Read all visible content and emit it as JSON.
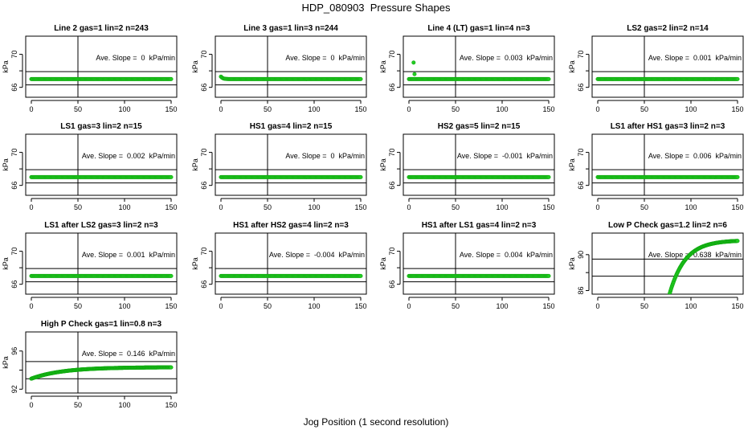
{
  "title": "HDP_080903  Pressure Shapes",
  "xlabel": "Jog Position (1 second resolution)",
  "chart_data": [
    {
      "type": "scatter",
      "title": "Line 2 gas=1 lin=2 n=243",
      "ylabel": "kPa",
      "xlim": [
        0,
        150
      ],
      "xticks": [
        0,
        50,
        100,
        150
      ],
      "ylim": [
        64.8,
        72.2
      ],
      "yticks": [
        66,
        70
      ],
      "hlines": [
        66.3,
        67.9
      ],
      "vline": 50,
      "annotation": "Ave. Slope =  0  kPa/min",
      "shape": "flat",
      "y_level": 67.0,
      "y_first": 67.0
    },
    {
      "type": "scatter",
      "title": "Line 3 gas=1 lin=3 n=244",
      "ylabel": "kPa",
      "xlim": [
        0,
        150
      ],
      "xticks": [
        0,
        50,
        100,
        150
      ],
      "ylim": [
        64.8,
        72.2
      ],
      "yticks": [
        66,
        70
      ],
      "hlines": [
        66.3,
        67.9
      ],
      "vline": 50,
      "annotation": "Ave. Slope =  0  kPa/min",
      "shape": "flat",
      "y_level": 67.0,
      "y_first": 67.3
    },
    {
      "type": "scatter",
      "title": "Line 4 (LT) gas=1 lin=4 n=3",
      "ylabel": "kPa",
      "xlim": [
        0,
        150
      ],
      "xticks": [
        0,
        50,
        100,
        150
      ],
      "ylim": [
        64.8,
        72.2
      ],
      "yticks": [
        66,
        70
      ],
      "hlines": [
        66.3,
        67.9
      ],
      "vline": 50,
      "annotation": "Ave. Slope =  0.003  kPa/min",
      "shape": "flat",
      "y_level": 67.0,
      "y_first": 67.0,
      "outliers": [
        [
          5,
          69.0
        ],
        [
          6,
          67.6
        ]
      ]
    },
    {
      "type": "scatter",
      "title": "LS2 gas=2 lin=2 n=14",
      "ylabel": "kPa",
      "xlim": [
        0,
        150
      ],
      "xticks": [
        0,
        50,
        100,
        150
      ],
      "ylim": [
        64.8,
        72.2
      ],
      "yticks": [
        66,
        70
      ],
      "hlines": [
        66.3,
        67.9
      ],
      "vline": 50,
      "annotation": "Ave. Slope =  0.001  kPa/min",
      "shape": "flat",
      "y_level": 67.0,
      "y_first": 67.0
    },
    {
      "type": "scatter",
      "title": "LS1 gas=3 lin=2 n=15",
      "ylabel": "kPa",
      "xlim": [
        0,
        150
      ],
      "xticks": [
        0,
        50,
        100,
        150
      ],
      "ylim": [
        64.8,
        72.2
      ],
      "yticks": [
        66,
        70
      ],
      "hlines": [
        66.3,
        67.9
      ],
      "vline": 50,
      "annotation": "Ave. Slope =  0.002  kPa/min",
      "shape": "flat",
      "y_level": 67.0,
      "y_first": 67.0
    },
    {
      "type": "scatter",
      "title": "HS1 gas=4 lin=2 n=15",
      "ylabel": "kPa",
      "xlim": [
        0,
        150
      ],
      "xticks": [
        0,
        50,
        100,
        150
      ],
      "ylim": [
        64.8,
        72.2
      ],
      "yticks": [
        66,
        70
      ],
      "hlines": [
        66.3,
        67.9
      ],
      "vline": 50,
      "annotation": "Ave. Slope =  0  kPa/min",
      "shape": "flat",
      "y_level": 67.0,
      "y_first": 67.0
    },
    {
      "type": "scatter",
      "title": "HS2 gas=5 lin=2 n=15",
      "ylabel": "kPa",
      "xlim": [
        0,
        150
      ],
      "xticks": [
        0,
        50,
        100,
        150
      ],
      "ylim": [
        64.8,
        72.2
      ],
      "yticks": [
        66,
        70
      ],
      "hlines": [
        66.3,
        67.9
      ],
      "vline": 50,
      "annotation": "Ave. Slope =  -0.001  kPa/min",
      "shape": "flat",
      "y_level": 67.0,
      "y_first": 67.0
    },
    {
      "type": "scatter",
      "title": "LS1 after HS1 gas=3 lin=2 n=3",
      "ylabel": "kPa",
      "xlim": [
        0,
        150
      ],
      "xticks": [
        0,
        50,
        100,
        150
      ],
      "ylim": [
        64.8,
        72.2
      ],
      "yticks": [
        66,
        70
      ],
      "hlines": [
        66.3,
        67.9
      ],
      "vline": 50,
      "annotation": "Ave. Slope =  0.006  kPa/min",
      "shape": "flat",
      "y_level": 67.0,
      "y_first": 67.0
    },
    {
      "type": "scatter",
      "title": "LS1 after LS2 gas=3 lin=2 n=3",
      "ylabel": "kPa",
      "xlim": [
        0,
        150
      ],
      "xticks": [
        0,
        50,
        100,
        150
      ],
      "ylim": [
        64.8,
        72.2
      ],
      "yticks": [
        66,
        70
      ],
      "hlines": [
        66.3,
        67.9
      ],
      "vline": 50,
      "annotation": "Ave. Slope =  0.001  kPa/min",
      "shape": "flat",
      "y_level": 67.0,
      "y_first": 67.0
    },
    {
      "type": "scatter",
      "title": "HS1 after HS2 gas=4 lin=2 n=3",
      "ylabel": "kPa",
      "xlim": [
        0,
        150
      ],
      "xticks": [
        0,
        50,
        100,
        150
      ],
      "ylim": [
        64.8,
        72.2
      ],
      "yticks": [
        66,
        70
      ],
      "hlines": [
        66.3,
        67.9
      ],
      "vline": 50,
      "annotation": "Ave. Slope =  -0.004  kPa/min",
      "shape": "flat",
      "y_level": 67.0,
      "y_first": 67.0
    },
    {
      "type": "scatter",
      "title": "HS1 after LS1 gas=4 lin=2 n=3",
      "ylabel": "kPa",
      "xlim": [
        0,
        150
      ],
      "xticks": [
        0,
        50,
        100,
        150
      ],
      "ylim": [
        64.8,
        72.2
      ],
      "yticks": [
        66,
        70
      ],
      "hlines": [
        66.3,
        67.9
      ],
      "vline": 50,
      "annotation": "Ave. Slope =  0.004  kPa/min",
      "shape": "flat",
      "y_level": 67.0,
      "y_first": 67.0
    },
    {
      "type": "scatter",
      "title": "Low P Check gas=1.2 lin=2 n=6",
      "ylabel": "kPa",
      "xlim": [
        0,
        150
      ],
      "xticks": [
        0,
        50,
        100,
        150
      ],
      "ylim": [
        85.6,
        92.4
      ],
      "yticks": [
        86,
        90
      ],
      "hlines": [
        87.6,
        89.5
      ],
      "vline": 50,
      "annotation": "Ave. Slope =  0.638  kPa/min",
      "shape": "rise",
      "x_start": 77,
      "y_start": 85.6,
      "y_end": 91.6,
      "rise_rate": 0.06
    },
    {
      "type": "scatter",
      "title": "High P Check gas=1 lin=0.8 n=3",
      "ylabel": "kPa",
      "xlim": [
        0,
        150
      ],
      "xticks": [
        0,
        50,
        100,
        150
      ],
      "ylim": [
        91.6,
        98.0
      ],
      "yticks": [
        92,
        96
      ],
      "hlines": [
        93.1,
        94.9
      ],
      "vline": 50,
      "annotation": "Ave. Slope =  0.146  kPa/min",
      "shape": "rise",
      "x_start": 0,
      "y_start": 93.1,
      "y_end": 94.3,
      "rise_rate": 0.03
    }
  ],
  "colors": {
    "points": "#22cc22",
    "points_stroke": "#11aa11",
    "axes": "#000000"
  }
}
